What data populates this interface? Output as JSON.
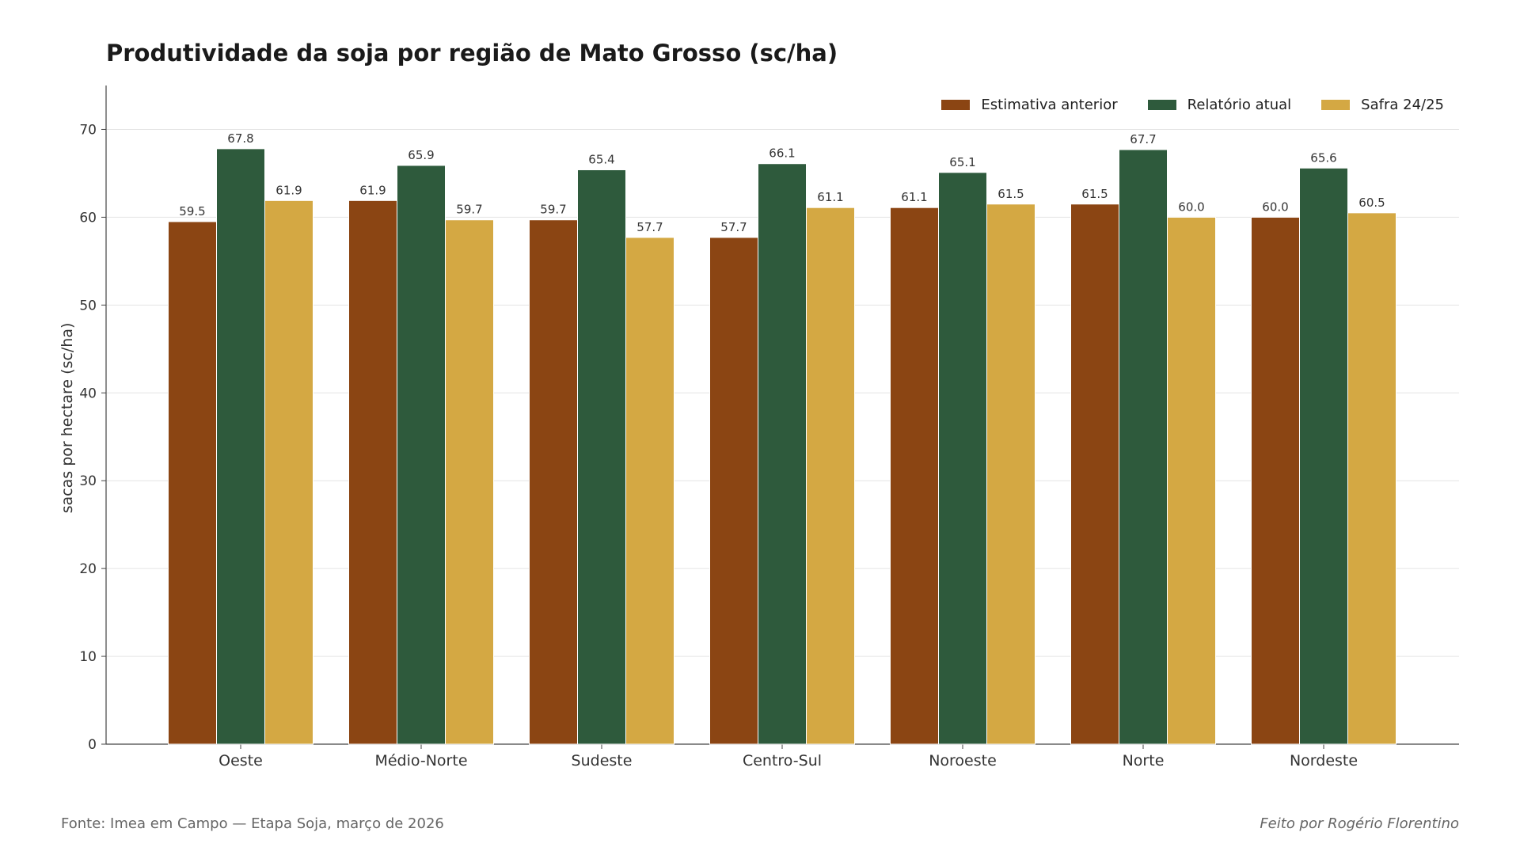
{
  "title": "Produtividade da soja por região de Mato Grosso (sc/ha)",
  "footer": {
    "source": "Fonte: Imea em Campo — Etapa Soja, março de 2026",
    "credit": "Feito por Rogério Florentino"
  },
  "chart_data": {
    "type": "bar",
    "title": "Produtividade da soja por região de Mato Grosso (sc/ha)",
    "xlabel": "",
    "ylabel": "sacas por hectare (sc/ha)",
    "ylim": [
      0,
      75
    ],
    "yticks": [
      0,
      10,
      20,
      30,
      40,
      50,
      60,
      70
    ],
    "grid": "horizontal",
    "legend_position": "top-right",
    "categories": [
      "Oeste",
      "Médio-Norte",
      "Sudeste",
      "Centro-Sul",
      "Noroeste",
      "Norte",
      "Nordeste"
    ],
    "series": [
      {
        "name": "Estimativa anterior",
        "color": "#8B4513",
        "values": [
          59.5,
          61.9,
          59.7,
          57.7,
          61.1,
          61.5,
          60.0
        ]
      },
      {
        "name": "Relatório atual",
        "color": "#2E5A3C",
        "values": [
          67.8,
          65.9,
          65.4,
          66.1,
          65.1,
          67.7,
          65.6
        ]
      },
      {
        "name": "Safra 24/25",
        "color": "#D4A843",
        "values": [
          61.9,
          59.7,
          57.7,
          61.1,
          61.5,
          60.0,
          60.5
        ]
      }
    ]
  }
}
